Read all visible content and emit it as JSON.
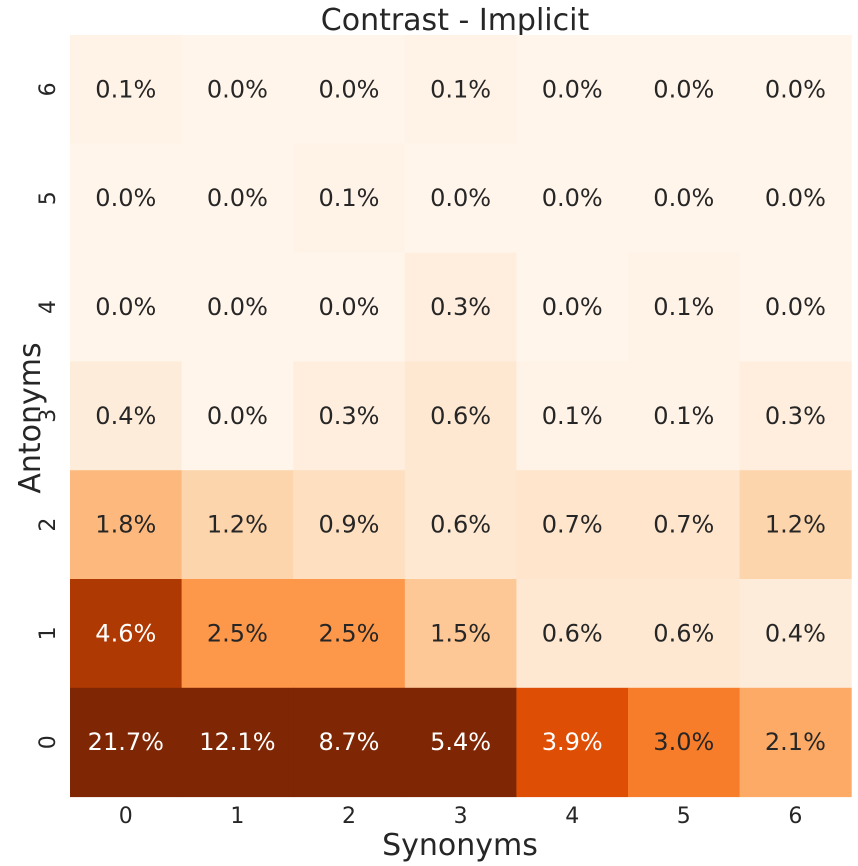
{
  "chart_data": {
    "type": "heatmap",
    "title": "Contrast - Implicit",
    "xlabel": "Synonyms",
    "ylabel": "Antonyms",
    "x_categories": [
      "0",
      "1",
      "2",
      "3",
      "4",
      "5",
      "6"
    ],
    "y_categories": [
      "6",
      "5",
      "4",
      "3",
      "2",
      "1",
      "0"
    ],
    "values": [
      [
        0.1,
        0.0,
        0.0,
        0.1,
        0.0,
        0.0,
        0.0
      ],
      [
        0.0,
        0.0,
        0.1,
        0.0,
        0.0,
        0.0,
        0.0
      ],
      [
        0.0,
        0.0,
        0.0,
        0.3,
        0.0,
        0.1,
        0.0
      ],
      [
        0.4,
        0.0,
        0.3,
        0.6,
        0.1,
        0.1,
        0.3
      ],
      [
        1.8,
        1.2,
        0.9,
        0.6,
        0.7,
        0.7,
        1.2
      ],
      [
        4.6,
        2.5,
        2.5,
        1.5,
        0.6,
        0.6,
        0.4
      ],
      [
        21.7,
        12.1,
        8.7,
        5.4,
        3.9,
        3.0,
        2.1
      ]
    ],
    "value_format": "percent-1dp",
    "colormap": "Oranges",
    "vmin": 0.0,
    "vmax": 5.4,
    "colorbar": false,
    "grid": false
  }
}
